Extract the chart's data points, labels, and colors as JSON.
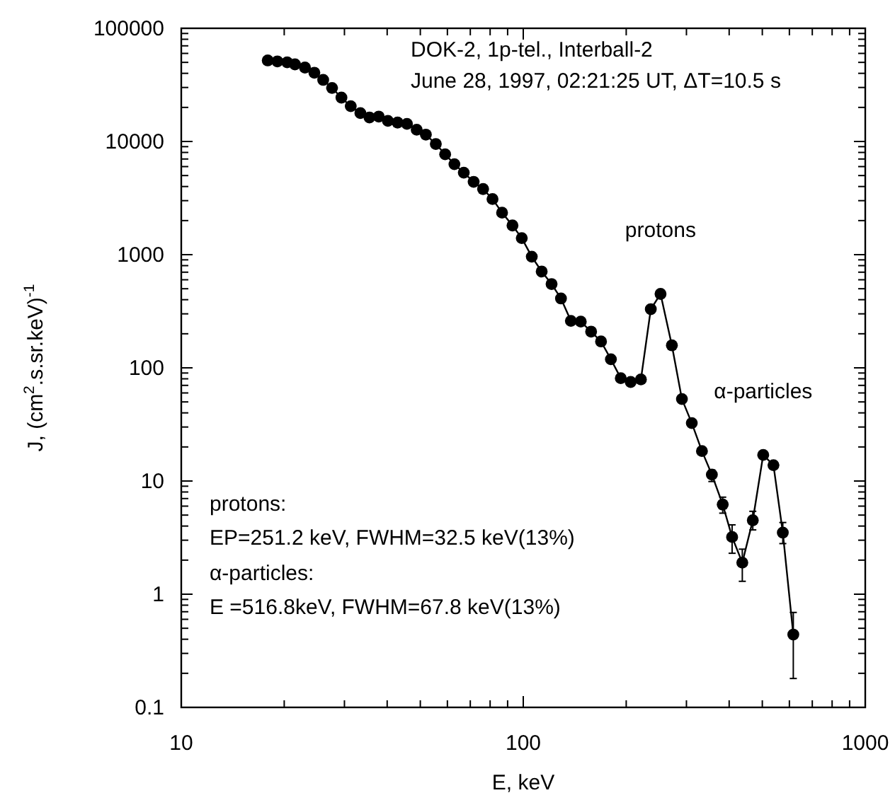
{
  "chart_data": {
    "type": "line",
    "xlabel": "E, keV",
    "ylabel": "J, (cm$^{2}$.s.sr.keV)$^{-1}$",
    "log": "xy",
    "grid": false,
    "marker": "circle",
    "line_style": "solid",
    "xlim": [
      10,
      1000
    ],
    "xticks": [
      10,
      100,
      1000
    ],
    "ylim": [
      0.1,
      100000
    ],
    "yticks": [
      0.1,
      1,
      10,
      100,
      1000,
      10000,
      100000
    ],
    "series": [
      {
        "color": "#000000",
        "x": [
          17.9,
          19.1,
          20.4,
          21.5,
          23.0,
          24.5,
          26.0,
          27.6,
          29.4,
          31.3,
          33.4,
          35.5,
          37.8,
          40.2,
          42.9,
          45.7,
          48.8,
          51.9,
          55.5,
          59.1,
          62.9,
          67.0,
          71.6,
          76.3,
          81.3,
          86.7,
          93.0,
          99.0,
          105.9,
          113.2,
          121.0,
          128.9,
          137.8,
          147.3,
          157.9,
          168.8,
          180.4,
          192.8,
          206.1,
          220.8,
          236,
          252,
          272,
          291,
          311,
          333,
          356,
          383,
          408,
          437,
          469,
          503,
          539,
          574,
          616
        ],
        "values": [
          52000,
          51000,
          50000,
          48000,
          45000,
          40500,
          35000,
          29700,
          24400,
          20500,
          17800,
          16300,
          16600,
          15200,
          14700,
          14300,
          12700,
          11500,
          9500,
          7700,
          6300,
          5300,
          4400,
          3800,
          3100,
          2350,
          1810,
          1400,
          960,
          710,
          550,
          410,
          260,
          256,
          209,
          171,
          119,
          81,
          75,
          79,
          330,
          450,
          158,
          53,
          32.5,
          18.4,
          11.4,
          6.2,
          3.2,
          1.9,
          4.5,
          17.0,
          13.8,
          3.5,
          0.44
        ],
        "errors": [
          null,
          null,
          null,
          null,
          null,
          null,
          null,
          null,
          null,
          null,
          null,
          null,
          null,
          null,
          null,
          null,
          null,
          null,
          null,
          null,
          null,
          null,
          null,
          null,
          null,
          null,
          null,
          null,
          null,
          null,
          null,
          null,
          null,
          null,
          null,
          null,
          null,
          null,
          null,
          null,
          null,
          null,
          null,
          null,
          null,
          null,
          [
            9.9,
            12.5
          ],
          [
            5.2,
            7.2
          ],
          [
            2.3,
            4.1
          ],
          [
            1.3,
            2.5
          ],
          [
            3.7,
            5.4
          ],
          null,
          null,
          [
            2.8,
            4.3
          ],
          [
            0.18,
            0.69
          ]
        ]
      }
    ],
    "annotations": [
      "DOK-2, 1p-tel., Interball-2",
      "June 28, 1997, 02:21:25 UT, ΔT=10.5 s",
      "protons:",
      "EP=251.2 keV, FWHM=32.5 keV(13%)",
      "α-particles:",
      "E =516.8keV, FWHM=67.8 keV(13%)",
      {
        "text": "protons",
        "x": 252,
        "y": 450
      },
      {
        "text": "α-particles",
        "x": 503,
        "y": 17.0
      }
    ]
  }
}
